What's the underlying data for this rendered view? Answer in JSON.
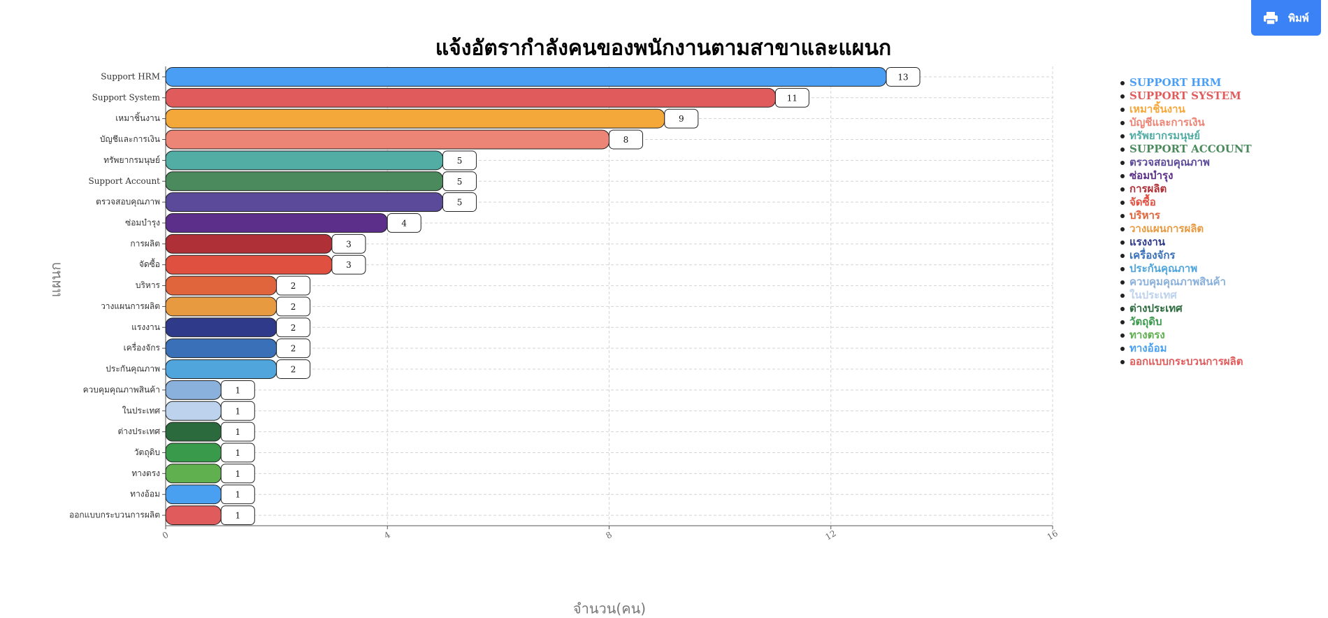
{
  "print_button": "พิมพ์",
  "chart_data": {
    "type": "bar",
    "orientation": "horizontal",
    "title": "แจ้งอัตรากำลังคนของพนักงานตามสาขาและแผนก",
    "x_label": "จำนวน(คน)",
    "y_label": "แผนก",
    "categories": [
      "Support HRM",
      "Support System",
      "เหมาชิ้นงาน",
      "บัญชีและการเงิน",
      "ทรัพยากรมนุษย์",
      "Support Account",
      "ตรวจสอบคุณภาพ",
      "ซ่อมบำรุง",
      "การผลิต",
      "จัดซื้อ",
      "บริหาร",
      "วางแผนการผลิต",
      "แรงงาน",
      "เครื่องจักร",
      "ประกันคุณภาพ",
      "ควบคุมคุณภาพสินค้า",
      "ในประเทศ",
      "ต่างประเทศ",
      "วัตถุดิบ",
      "ทางตรง",
      "ทางอ้อม",
      "ออกแบบกระบวนการผลิต"
    ],
    "values": [
      13,
      11,
      9,
      8,
      5,
      5,
      5,
      4,
      3,
      3,
      2,
      2,
      2,
      2,
      2,
      1,
      1,
      1,
      1,
      1,
      1,
      1
    ],
    "colors": [
      "#4a9ff5",
      "#e05c5c",
      "#f5a83a",
      "#ec8576",
      "#52ada4",
      "#4a8a5c",
      "#5b4a9a",
      "#5b2f8a",
      "#b03038",
      "#e05040",
      "#e0643c",
      "#e89a40",
      "#2f3a8a",
      "#3a70b8",
      "#4fa5dc",
      "#8ab0dc",
      "#bdd2ec",
      "#2a6a3c",
      "#3a9a4c",
      "#60b050",
      "#4aa0f0",
      "#e05c5c"
    ],
    "xlim": [
      0,
      16
    ],
    "xticks": [
      0,
      4,
      8,
      12,
      16
    ],
    "grid": true,
    "legend": [
      {
        "label": "SUPPORT HRM",
        "color": "#4a9ff5"
      },
      {
        "label": "SUPPORT SYSTEM",
        "color": "#e05c5c"
      },
      {
        "label": "เหมาชิ้นงาน",
        "color": "#f5a83a"
      },
      {
        "label": "บัญชีและการเงิน",
        "color": "#ec8576"
      },
      {
        "label": "ทรัพยากรมนุษย์",
        "color": "#52ada4"
      },
      {
        "label": "SUPPORT ACCOUNT",
        "color": "#4a8a5c"
      },
      {
        "label": "ตรวจสอบคุณภาพ",
        "color": "#5b4a9a"
      },
      {
        "label": "ซ่อมบำรุง",
        "color": "#5b2f8a"
      },
      {
        "label": "การผลิต",
        "color": "#b03038"
      },
      {
        "label": "จัดซื้อ",
        "color": "#e05040"
      },
      {
        "label": "บริหาร",
        "color": "#e0643c"
      },
      {
        "label": "วางแผนการผลิต",
        "color": "#e89a40"
      },
      {
        "label": "แรงงาน",
        "color": "#2f3a8a"
      },
      {
        "label": "เครื่องจักร",
        "color": "#3a70b8"
      },
      {
        "label": "ประกันคุณภาพ",
        "color": "#4fa5dc"
      },
      {
        "label": "ควบคุมคุณภาพสินค้า",
        "color": "#8ab0dc"
      },
      {
        "label": "ในประเทศ",
        "color": "#bdd2ec"
      },
      {
        "label": "ต่างประเทศ",
        "color": "#2a6a3c"
      },
      {
        "label": "วัตถุดิบ",
        "color": "#3a9a4c"
      },
      {
        "label": "ทางตรง",
        "color": "#60b050"
      },
      {
        "label": "ทางอ้อม",
        "color": "#4aa0f0"
      },
      {
        "label": "ออกแบบกระบวนการผลิต",
        "color": "#e05c5c"
      }
    ]
  }
}
